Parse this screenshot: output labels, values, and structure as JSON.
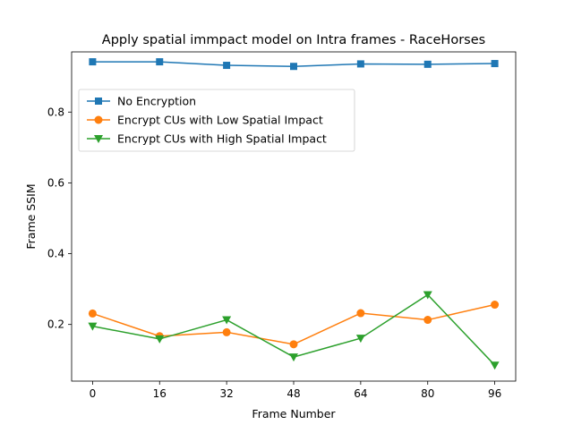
{
  "chart_data": {
    "type": "line",
    "title": "Apply spatial immpact model on Intra frames - RaceHorses",
    "xlabel": "Frame Number",
    "ylabel": "Frame SSIM",
    "x": [
      0,
      16,
      32,
      48,
      64,
      80,
      96
    ],
    "xlim": [
      -5,
      101
    ],
    "ylim": [
      0.04,
      0.97
    ],
    "xticks": [
      "0",
      "16",
      "32",
      "48",
      "64",
      "80",
      "96"
    ],
    "yticks": [
      "0.2",
      "0.4",
      "0.6",
      "0.8"
    ],
    "ytick_values": [
      0.2,
      0.4,
      0.6,
      0.8
    ],
    "grid": false,
    "legend_position": "upper-left",
    "series": [
      {
        "name": "No Encryption",
        "color": "#1f77b4",
        "marker": "square",
        "values": [
          0.942,
          0.942,
          0.932,
          0.929,
          0.936,
          0.935,
          0.937
        ]
      },
      {
        "name": "Encrypt CUs with Low Spatial Impact",
        "color": "#ff7f0e",
        "marker": "circle",
        "values": [
          0.231,
          0.167,
          0.178,
          0.144,
          0.232,
          0.213,
          0.256
        ]
      },
      {
        "name": "Encrypt CUs with High Spatial Impact",
        "color": "#2ca02c",
        "marker": "triangle-down",
        "values": [
          0.195,
          0.159,
          0.213,
          0.108,
          0.161,
          0.284,
          0.085
        ]
      }
    ]
  }
}
